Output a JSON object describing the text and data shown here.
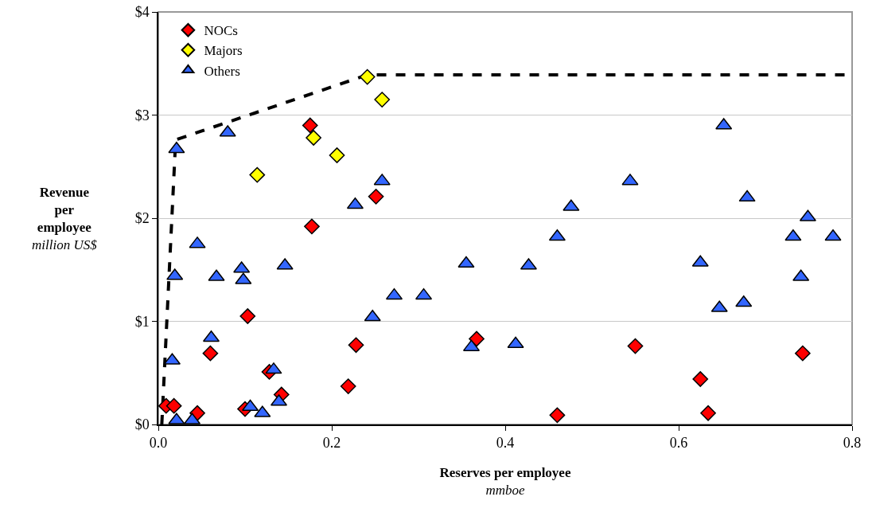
{
  "chart_data": {
    "type": "scatter",
    "xlabel": "Reserves per employee\nmmboe",
    "ylabel": "Revenue per employee\nmillion US$",
    "xlim": [
      0,
      0.8
    ],
    "xticks": [
      {
        "value": 0,
        "label": "0.0"
      },
      0.2,
      0.4,
      0.6,
      0.8
    ],
    "ylim": [
      0,
      4
    ],
    "yticks": [
      {
        "value": 0,
        "label": "$0"
      },
      {
        "value": 1,
        "label": "$1"
      },
      {
        "value": 2,
        "label": "$2"
      },
      {
        "value": 3,
        "label": "$3"
      },
      {
        "value": 4,
        "label": "$4"
      }
    ],
    "grid": "y",
    "legend": "top left",
    "series": [
      {
        "name": "NOCs",
        "color": "#ff0000",
        "marker": "diamond",
        "x": [
          0.009,
          0.018,
          0.045,
          0.06,
          0.103,
          0.1,
          0.128,
          0.142,
          0.175,
          0.177,
          0.219,
          0.228,
          0.251,
          0.367,
          0.46,
          0.55,
          0.625,
          0.634,
          0.743
        ],
        "values": [
          0.18,
          0.18,
          0.11,
          0.69,
          1.05,
          0.15,
          0.51,
          0.29,
          2.9,
          1.92,
          0.37,
          0.77,
          2.21,
          0.83,
          0.09,
          0.76,
          0.44,
          0.11,
          0.69
        ]
      },
      {
        "name": "Majors",
        "color": "#ffff00",
        "marker": "diamond",
        "x": [
          0.241,
          0.258,
          0.179,
          0.206,
          0.114
        ],
        "values": [
          3.37,
          3.15,
          2.78,
          2.61,
          2.42
        ]
      },
      {
        "name": "Others",
        "color": "#3366ff",
        "marker": "triangle",
        "x": [
          0.021,
          0.08,
          0.258,
          0.227,
          0.045,
          0.019,
          0.067,
          0.096,
          0.098,
          0.146,
          0.355,
          0.272,
          0.306,
          0.247,
          0.061,
          0.016,
          0.361,
          0.133,
          0.106,
          0.12,
          0.139,
          0.021,
          0.039,
          0.652,
          0.544,
          0.476,
          0.679,
          0.749,
          0.46,
          0.732,
          0.778,
          0.427,
          0.625,
          0.741,
          0.647,
          0.675,
          0.412
        ],
        "values": [
          2.67,
          2.83,
          2.36,
          2.13,
          1.75,
          1.44,
          1.43,
          1.51,
          1.4,
          1.54,
          1.56,
          1.25,
          1.25,
          1.04,
          0.84,
          0.62,
          0.75,
          0.53,
          0.17,
          0.11,
          0.22,
          0.04,
          0.04,
          2.9,
          2.36,
          2.11,
          2.2,
          2.01,
          1.82,
          1.82,
          1.82,
          1.54,
          1.57,
          1.43,
          1.13,
          1.18,
          0.78
        ]
      },
      {
        "type": "line",
        "color": "#000000",
        "marker": "none",
        "line_style": "dashed",
        "x": [
          0.004,
          0.02,
          0.241,
          0.8
        ],
        "values": [
          0,
          2.76,
          3.39,
          3.39
        ]
      }
    ]
  }
}
